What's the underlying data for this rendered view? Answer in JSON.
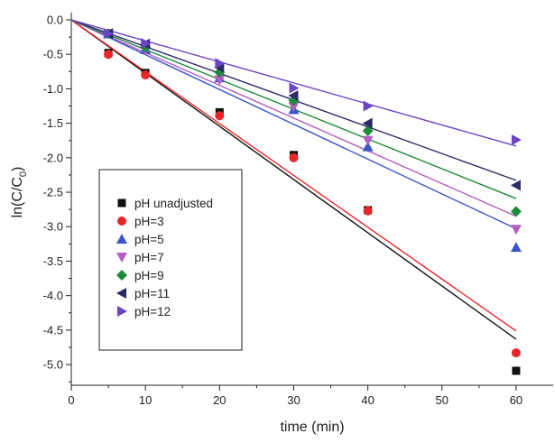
{
  "chart_data": {
    "type": "scatter",
    "xlabel": "time (min)",
    "ylabel_main": "ln(C/C",
    "ylabel_sub": "0",
    "ylabel_close": ")",
    "xlim": [
      0,
      65
    ],
    "ylim": [
      -5.3,
      0
    ],
    "xticks": [
      0,
      10,
      20,
      30,
      40,
      50,
      60
    ],
    "yticks": [
      0,
      -0.5,
      -1.0,
      -1.5,
      -2.0,
      -2.5,
      -3.0,
      -3.5,
      -4.0,
      -4.5,
      -5.0
    ],
    "ytick_labels": [
      "0.0",
      "-0.5",
      "-1.0",
      "-1.5",
      "-2.0",
      "-2.5",
      "-3.0",
      "-3.5",
      "-4.0",
      "-4.5",
      "-5.0"
    ],
    "grid": false,
    "legend_position": "lower-left",
    "x": [
      0,
      5,
      10,
      20,
      30,
      40,
      60
    ],
    "series": [
      {
        "name": "pH unadjusted",
        "marker": "square",
        "color": "#111111",
        "fit_color": "#111111",
        "y": [
          0,
          -0.48,
          -0.77,
          -1.34,
          -1.96,
          -2.76,
          -5.09
        ],
        "fit_slope": -0.0772
      },
      {
        "name": "pH=3",
        "marker": "circle",
        "color": "#e8262a",
        "fit_color": "#e8262a",
        "y": [
          0,
          -0.5,
          -0.8,
          -1.39,
          -2.0,
          -2.77,
          -4.83
        ],
        "fit_slope": -0.0752
      },
      {
        "name": "pH=5",
        "marker": "triangle-up",
        "color": "#3a55c8",
        "fit_color": "#3a55c8",
        "y": [
          0,
          -0.2,
          -0.43,
          -0.84,
          -1.3,
          -1.84,
          -3.3
        ],
        "fit_slope": -0.0505
      },
      {
        "name": "pH=7",
        "marker": "triangle-down",
        "color": "#b45cc0",
        "fit_color": "#b45cc0",
        "y": [
          0,
          -0.2,
          -0.44,
          -0.87,
          -1.26,
          -1.75,
          -3.04
        ],
        "fit_slope": -0.0475
      },
      {
        "name": "pH=9",
        "marker": "diamond",
        "color": "#1e8a3a",
        "fit_color": "#1e8a3a",
        "y": [
          0,
          -0.2,
          -0.4,
          -0.76,
          -1.17,
          -1.61,
          -2.78
        ],
        "fit_slope": -0.0432
      },
      {
        "name": "pH=11",
        "marker": "triangle-left",
        "color": "#2a2a66",
        "fit_color": "#2a2a66",
        "y": [
          0,
          -0.2,
          -0.35,
          -0.69,
          -1.1,
          -1.5,
          -2.4
        ],
        "fit_slope": -0.0388
      },
      {
        "name": "pH=12",
        "marker": "triangle-right",
        "color": "#6a45c4",
        "fit_color": "#6a45c4",
        "y": [
          0,
          -0.2,
          -0.34,
          -0.63,
          -0.99,
          -1.25,
          -1.74
        ],
        "fit_slope": -0.0305
      }
    ]
  }
}
